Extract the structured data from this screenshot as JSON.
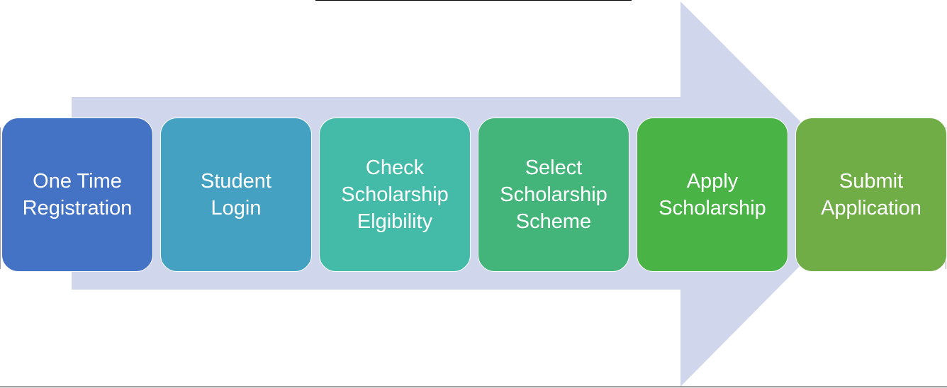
{
  "process": {
    "steps": [
      {
        "label": "One Time\nRegistration",
        "color": "#4472c4"
      },
      {
        "label": "Student\nLogin",
        "color": "#44a1c1"
      },
      {
        "label": "Check\nScholarship\nElgibility",
        "color": "#44bba8"
      },
      {
        "label": "Select\nScholarship\nScheme",
        "color": "#44b57a"
      },
      {
        "label": "Apply\nScholarship",
        "color": "#49b346"
      },
      {
        "label": "Submit\nApplication",
        "color": "#70ad47"
      }
    ],
    "arrow_color": "#d0d6ec"
  }
}
